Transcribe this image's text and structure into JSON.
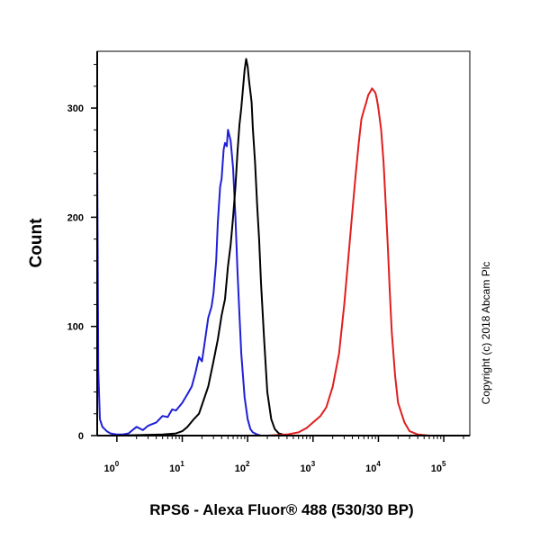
{
  "chart_data": {
    "type": "line",
    "title": "",
    "xlabel": "RPS6 - Alexa Fluor® 488 (530/30 BP)",
    "ylabel": "Count",
    "x_scale": "log",
    "xlim": [
      0.5,
      250000
    ],
    "ylim": [
      0,
      352
    ],
    "grid": false,
    "legend": "none",
    "x_ticks": [
      {
        "base": "10",
        "exp": "0",
        "value": 1
      },
      {
        "base": "10",
        "exp": "1",
        "value": 10
      },
      {
        "base": "10",
        "exp": "2",
        "value": 100
      },
      {
        "base": "10",
        "exp": "3",
        "value": 1000
      },
      {
        "base": "10",
        "exp": "4",
        "value": 10000
      },
      {
        "base": "10",
        "exp": "5",
        "value": 100000
      }
    ],
    "y_ticks": [
      {
        "label": "0",
        "value": 0
      },
      {
        "label": "100",
        "value": 100
      },
      {
        "label": "200",
        "value": 200
      },
      {
        "label": "300",
        "value": 300
      }
    ],
    "series": [
      {
        "color": "#1f1fd6",
        "x": [
          0.5,
          0.52,
          0.55,
          0.6,
          0.7,
          0.8,
          1.0,
          1.2,
          1.5,
          2,
          2.5,
          3,
          4,
          5,
          6,
          7,
          8,
          10,
          12,
          14,
          16,
          18,
          20,
          22,
          25,
          28,
          30,
          33,
          35,
          38,
          40,
          43,
          45,
          48,
          50,
          55,
          60,
          65,
          70,
          75,
          80,
          90,
          100,
          110,
          120,
          140,
          160,
          200
        ],
        "y": [
          260,
          60,
          15,
          8,
          4,
          2,
          1,
          1,
          2,
          8,
          5,
          9,
          12,
          18,
          17,
          24,
          23,
          30,
          38,
          45,
          58,
          72,
          68,
          85,
          108,
          118,
          130,
          160,
          195,
          228,
          235,
          262,
          268,
          265,
          280,
          270,
          245,
          200,
          150,
          110,
          75,
          35,
          15,
          6,
          3,
          1,
          0,
          0
        ]
      },
      {
        "color": "#000000",
        "x": [
          1,
          5,
          8,
          10,
          12,
          15,
          18,
          20,
          25,
          30,
          35,
          40,
          45,
          50,
          55,
          60,
          65,
          70,
          75,
          80,
          85,
          90,
          95,
          100,
          105,
          110,
          115,
          120,
          130,
          140,
          150,
          160,
          180,
          200,
          230,
          260,
          300,
          400
        ],
        "y": [
          0,
          1,
          2,
          4,
          8,
          15,
          20,
          28,
          45,
          68,
          88,
          110,
          125,
          155,
          175,
          200,
          228,
          260,
          285,
          300,
          318,
          335,
          345,
          338,
          325,
          315,
          305,
          282,
          250,
          210,
          180,
          140,
          85,
          40,
          15,
          6,
          2,
          0
        ]
      },
      {
        "color": "#e01e1e",
        "x": [
          200,
          400,
          600,
          800,
          1000,
          1300,
          1600,
          2000,
          2500,
          3000,
          3500,
          4000,
          4500,
          5000,
          5500,
          6000,
          6500,
          7000,
          7500,
          8000,
          8500,
          9000,
          9500,
          10000,
          11000,
          12000,
          13000,
          14000,
          15000,
          16000,
          18000,
          20000,
          25000,
          30000,
          40000,
          60000,
          100000,
          250000
        ],
        "y": [
          0,
          1,
          3,
          7,
          12,
          18,
          26,
          45,
          75,
          120,
          165,
          205,
          240,
          268,
          290,
          298,
          305,
          312,
          315,
          318,
          316,
          314,
          308,
          300,
          280,
          250,
          210,
          170,
          130,
          95,
          55,
          30,
          12,
          4,
          1,
          0,
          0,
          0
        ]
      }
    ]
  },
  "copyright": "Copyright (c) 2018 Abcam Plc"
}
